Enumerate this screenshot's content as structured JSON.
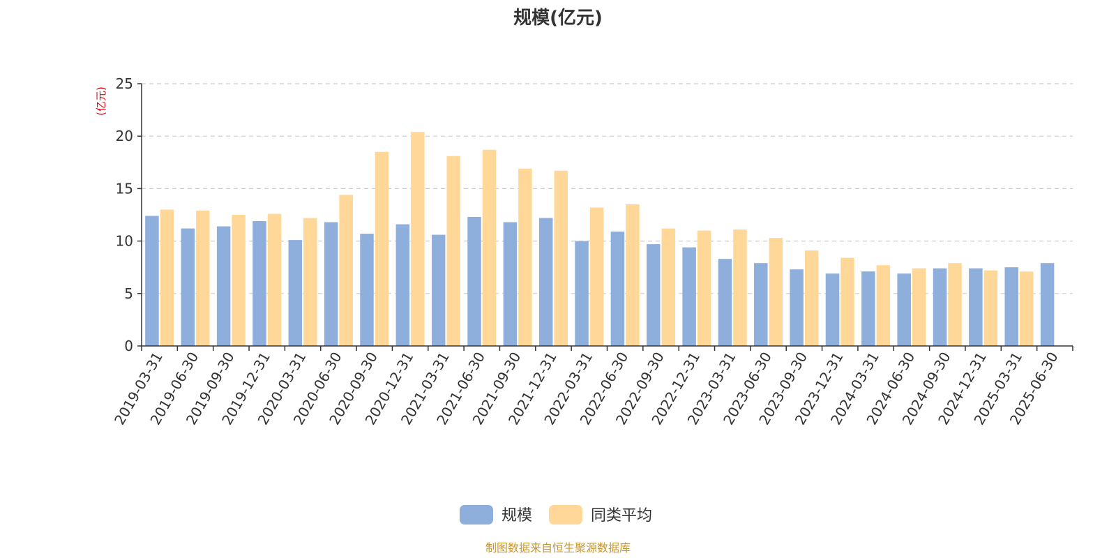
{
  "chart_data": {
    "type": "bar",
    "title": "规模(亿元)",
    "ylabel": "(亿元)",
    "xlabel": "",
    "ylim": [
      0,
      25
    ],
    "yticks": [
      0,
      5,
      10,
      15,
      20,
      25
    ],
    "grid": true,
    "legend_position": "bottom-center",
    "categories": [
      "2019-03-31",
      "2019-06-30",
      "2019-09-30",
      "2019-12-31",
      "2020-03-31",
      "2020-06-30",
      "2020-09-30",
      "2020-12-31",
      "2021-03-31",
      "2021-06-30",
      "2021-09-30",
      "2021-12-31",
      "2022-03-31",
      "2022-06-30",
      "2022-09-30",
      "2022-12-31",
      "2023-03-31",
      "2023-06-30",
      "2023-09-30",
      "2023-12-31",
      "2024-03-31",
      "2024-06-30",
      "2024-09-30",
      "2024-12-31",
      "2025-03-31",
      "2025-06-30"
    ],
    "series": [
      {
        "name": "规模",
        "color": "#8eaedc",
        "values": [
          12.4,
          11.2,
          11.4,
          11.9,
          10.1,
          11.8,
          10.7,
          11.6,
          10.6,
          12.3,
          11.8,
          12.2,
          10.0,
          10.9,
          9.7,
          9.4,
          8.3,
          7.9,
          7.3,
          6.9,
          7.1,
          6.9,
          7.4,
          7.4,
          7.5,
          7.9
        ]
      },
      {
        "name": "同类平均",
        "color": "#ffd899",
        "values": [
          13.0,
          12.9,
          12.5,
          12.6,
          12.2,
          14.4,
          18.5,
          20.4,
          18.1,
          18.7,
          16.9,
          16.7,
          13.2,
          13.5,
          11.2,
          11.0,
          11.1,
          10.3,
          9.1,
          8.4,
          7.7,
          7.4,
          7.9,
          7.2,
          7.1,
          null
        ]
      }
    ]
  },
  "source": {
    "text": "制图数据来自恒生聚源数据库",
    "color": "#c9962c"
  }
}
